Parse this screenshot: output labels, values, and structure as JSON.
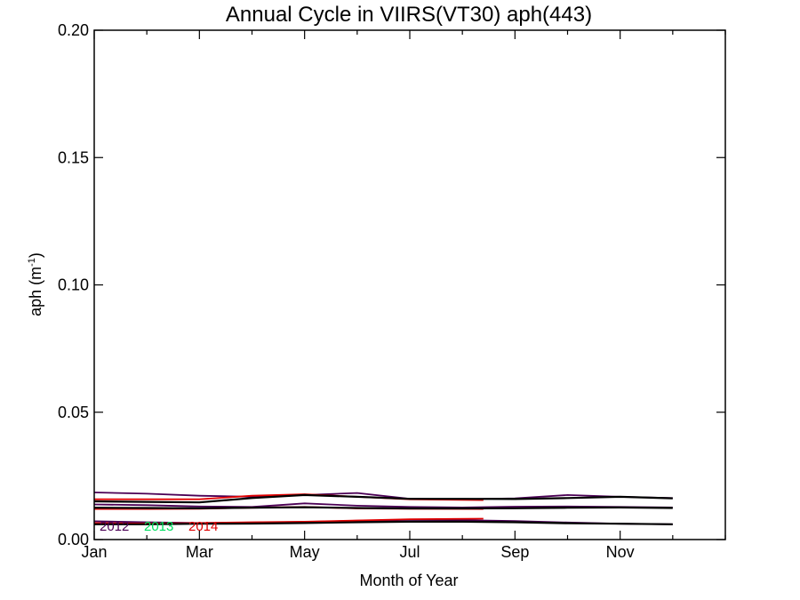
{
  "chart_data": {
    "type": "line",
    "title": "Annual Cycle in VIIRS(VT30) aph(443)",
    "xlabel": "Month of Year",
    "ylabel_main": "aph (m",
    "ylabel_sup": "-1",
    "ylabel_close": ")",
    "xlim": [
      1,
      13
    ],
    "ylim": [
      0.0,
      0.2
    ],
    "x_ticks": [
      1,
      3,
      5,
      7,
      9,
      11
    ],
    "x_tick_labels": [
      "Jan",
      "Mar",
      "May",
      "Jul",
      "Sep",
      "Nov"
    ],
    "y_ticks": [
      0.0,
      0.05,
      0.1,
      0.15,
      0.2
    ],
    "y_tick_labels": [
      "0.00",
      "0.05",
      "0.10",
      "0.15",
      "0.20"
    ],
    "grid": false,
    "legend": [
      {
        "label": "2012",
        "color": "#4b0055"
      },
      {
        "label": "2013",
        "color": "#00e060"
      },
      {
        "label": "2014",
        "color": "#e00000"
      }
    ],
    "series": [
      {
        "color": "#4b0055",
        "x": [
          1,
          2,
          3,
          4,
          5,
          6,
          7,
          8,
          9,
          10,
          11,
          12
        ],
        "values": [
          0.0185,
          0.018,
          0.0172,
          0.0168,
          0.0175,
          0.0183,
          0.016,
          0.0158,
          0.0162,
          0.0175,
          0.0168,
          0.0163
        ]
      },
      {
        "color": "#4b0055",
        "x": [
          1,
          2,
          3,
          4,
          5,
          6,
          7,
          8,
          9,
          10,
          11,
          12
        ],
        "values": [
          0.0138,
          0.0135,
          0.013,
          0.0128,
          0.0142,
          0.0133,
          0.0128,
          0.0126,
          0.0129,
          0.013,
          0.0128,
          0.0126
        ]
      },
      {
        "color": "#4b0055",
        "x": [
          1,
          2,
          3,
          4,
          5,
          6,
          7,
          8,
          9,
          10,
          11,
          12
        ],
        "values": [
          0.0072,
          0.0068,
          0.0065,
          0.0067,
          0.0069,
          0.0074,
          0.0077,
          0.0076,
          0.0073,
          0.0067,
          0.0062,
          0.006
        ]
      },
      {
        "color": "#e00000",
        "x": [
          1,
          2,
          3,
          4,
          5,
          6,
          7,
          8.4
        ],
        "values": [
          0.0158,
          0.0158,
          0.0158,
          0.0172,
          0.0178,
          0.0168,
          0.0158,
          0.0155
        ]
      },
      {
        "color": "#e00000",
        "x": [
          1,
          2,
          3,
          4,
          5,
          6,
          7,
          8.4
        ],
        "values": [
          0.012,
          0.012,
          0.0121,
          0.0125,
          0.0128,
          0.0122,
          0.0121,
          0.012
        ]
      },
      {
        "color": "#e00000",
        "x": [
          1,
          2,
          3,
          4,
          5,
          6,
          7,
          8.4
        ],
        "values": [
          0.0065,
          0.0063,
          0.0065,
          0.0068,
          0.007,
          0.0075,
          0.008,
          0.0082
        ]
      },
      {
        "color": "#000000",
        "x": [
          1,
          2,
          3,
          4,
          5,
          6,
          7,
          8,
          9,
          10,
          11,
          12
        ],
        "values": [
          0.015,
          0.0148,
          0.0146,
          0.0163,
          0.0175,
          0.0168,
          0.016,
          0.016,
          0.0159,
          0.0163,
          0.0168,
          0.0162
        ]
      },
      {
        "color": "#000000",
        "x": [
          1,
          2,
          3,
          4,
          5,
          6,
          7,
          8,
          9,
          10,
          11,
          12
        ],
        "values": [
          0.0125,
          0.0124,
          0.0123,
          0.0125,
          0.0127,
          0.0124,
          0.0122,
          0.0122,
          0.0123,
          0.0125,
          0.0126,
          0.0124
        ]
      },
      {
        "color": "#000000",
        "x": [
          1,
          2,
          3,
          4,
          5,
          6,
          7,
          8,
          9,
          10,
          11,
          12
        ],
        "values": [
          0.006,
          0.006,
          0.0062,
          0.0063,
          0.0065,
          0.0068,
          0.007,
          0.007,
          0.0068,
          0.0064,
          0.0062,
          0.006
        ]
      }
    ]
  }
}
